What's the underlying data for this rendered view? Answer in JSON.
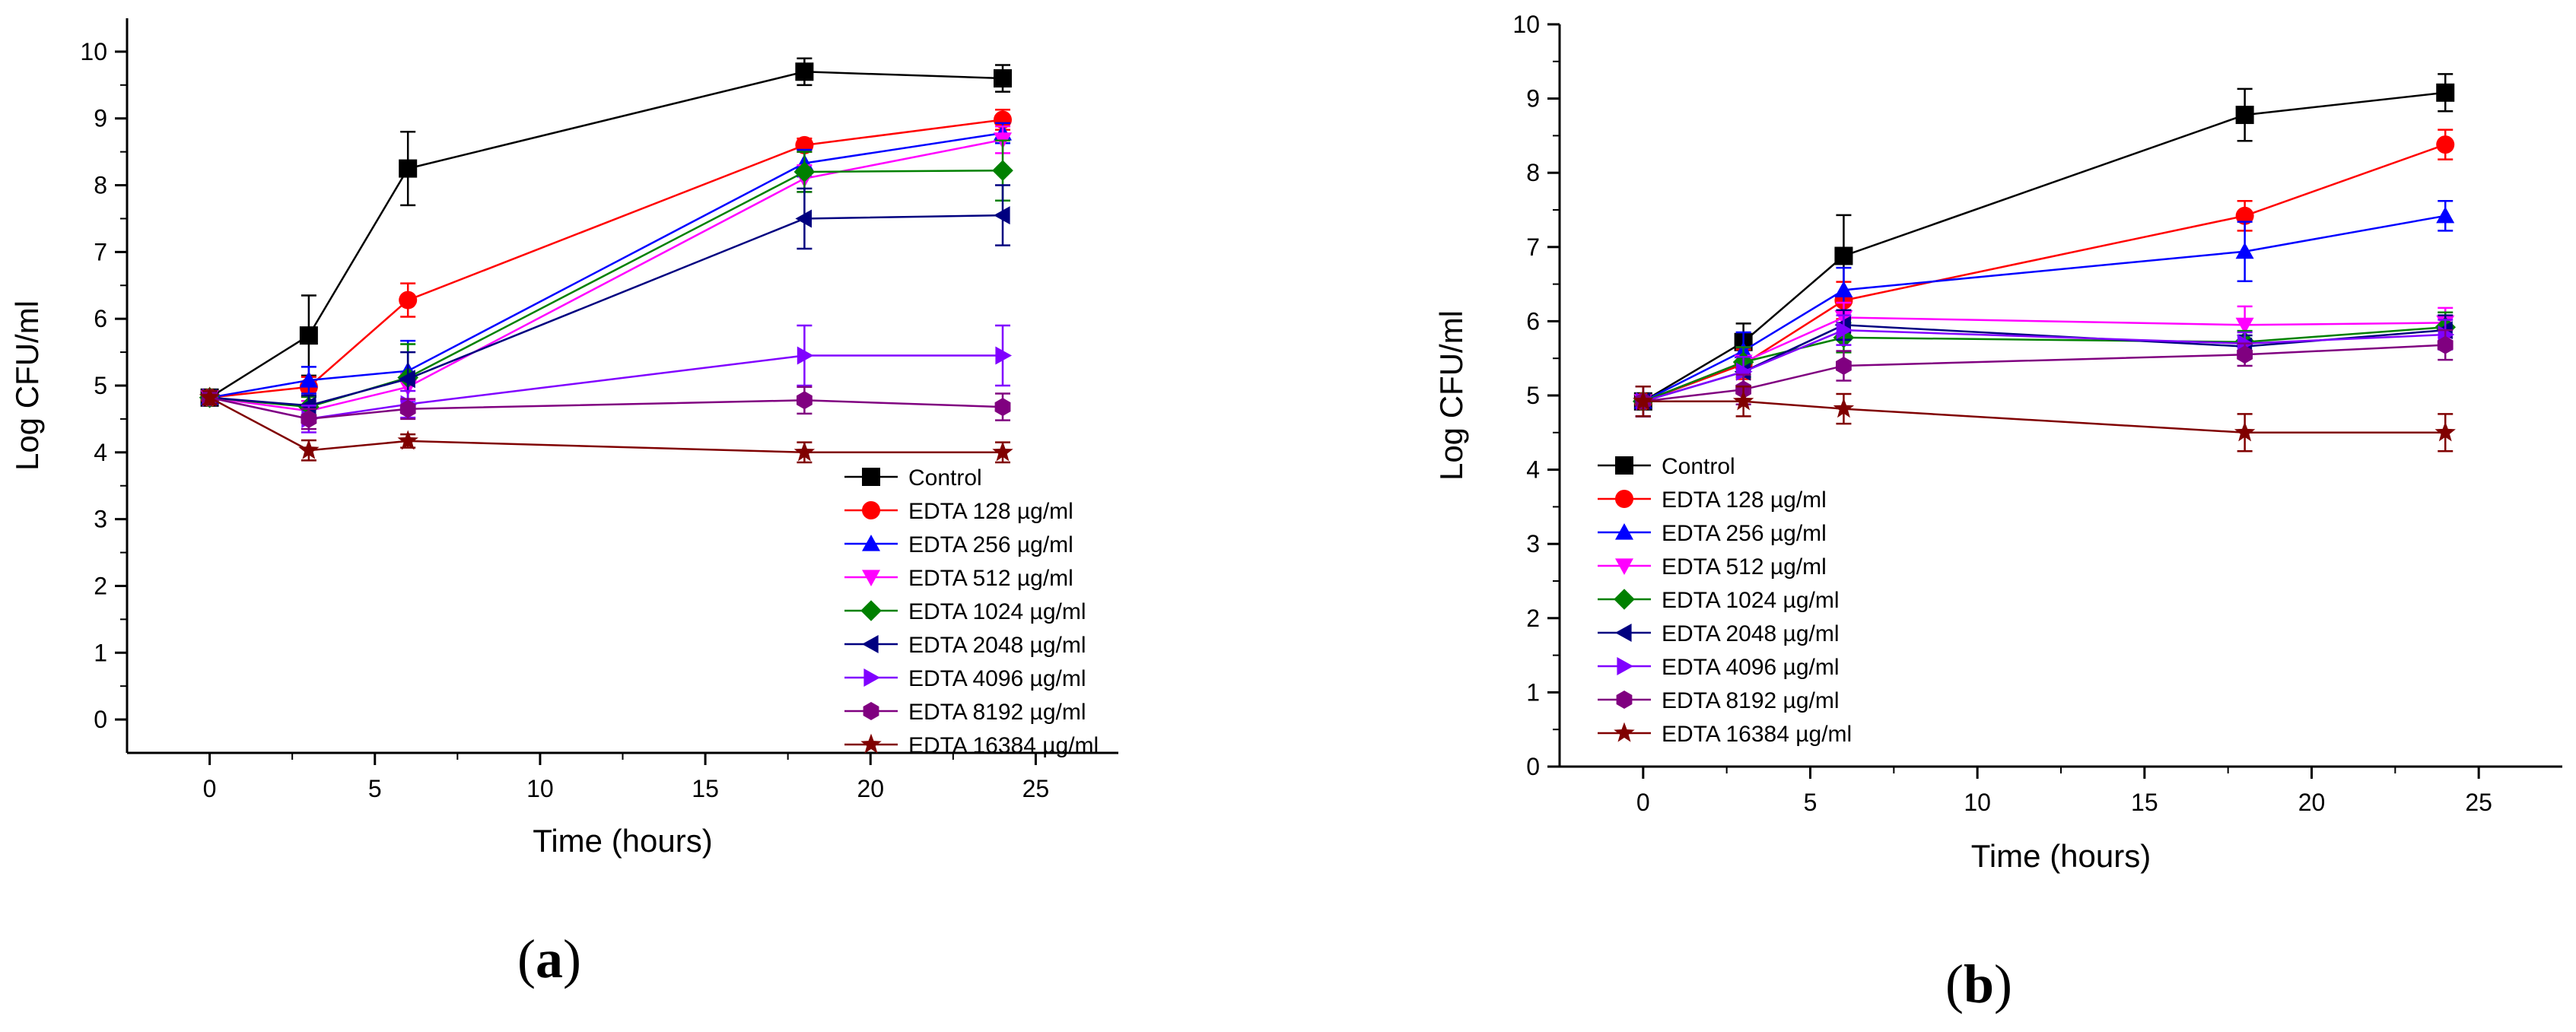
{
  "chart_data": [
    {
      "type": "line",
      "panel_label": "(a)",
      "panel_letter": "a",
      "xlabel": "Time (hours)",
      "ylabel": "Log CFU/ml",
      "xlim": [
        -2.5,
        27.5
      ],
      "ylim": [
        -0.5,
        10.5
      ],
      "xticks": [
        0,
        5,
        10,
        15,
        20,
        25
      ],
      "xtick_labels": [
        "0",
        "5",
        "10",
        "15",
        "20",
        "25"
      ],
      "yticks": [
        0,
        1,
        2,
        3,
        4,
        5,
        6,
        7,
        8,
        9,
        10
      ],
      "ytick_labels": [
        "0",
        "1",
        "2",
        "3",
        "4",
        "5",
        "6",
        "7",
        "8",
        "9",
        "10"
      ],
      "x": [
        0,
        3,
        6,
        18,
        24
      ],
      "series": [
        {
          "name": "Control",
          "color": "#000000",
          "marker": "square",
          "values": [
            4.82,
            5.75,
            8.25,
            9.7,
            9.6
          ],
          "errors": [
            0.1,
            0.6,
            0.55,
            0.2,
            0.2
          ]
        },
        {
          "name": "EDTA 128 µg/ml",
          "color": "#ff0000",
          "marker": "circle",
          "values": [
            4.82,
            4.98,
            6.28,
            8.6,
            8.98
          ],
          "errors": [
            0.1,
            0.15,
            0.25,
            0.1,
            0.15
          ]
        },
        {
          "name": "EDTA 256 µg/ml",
          "color": "#0000ff",
          "marker": "triangle-up",
          "values": [
            4.82,
            5.08,
            5.22,
            8.33,
            8.78
          ],
          "errors": [
            0.1,
            0.2,
            0.45,
            0.2,
            0.15
          ]
        },
        {
          "name": "EDTA 512 µg/ml",
          "color": "#ff00ff",
          "marker": "triangle-down",
          "values": [
            4.82,
            4.62,
            4.98,
            8.1,
            8.68
          ],
          "errors": [
            0.1,
            0.15,
            0.2,
            0.2,
            0.2
          ]
        },
        {
          "name": "EDTA 1024 µg/ml",
          "color": "#008000",
          "marker": "diamond",
          "values": [
            4.82,
            4.68,
            5.12,
            8.2,
            8.22
          ],
          "errors": [
            0.1,
            0.15,
            0.5,
            0.3,
            0.45
          ]
        },
        {
          "name": "EDTA 2048 µg/ml",
          "color": "#000080",
          "marker": "triangle-left",
          "values": [
            4.82,
            4.7,
            5.1,
            7.5,
            7.55
          ],
          "errors": [
            0.1,
            0.15,
            0.4,
            0.45,
            0.45
          ]
        },
        {
          "name": "EDTA 4096 µg/ml",
          "color": "#8000ff",
          "marker": "triangle-right",
          "values": [
            4.82,
            4.5,
            4.72,
            5.45,
            5.45
          ],
          "errors": [
            0.1,
            0.2,
            0.2,
            0.45,
            0.45
          ]
        },
        {
          "name": "EDTA 8192 µg/ml",
          "color": "#800080",
          "marker": "hexagon",
          "values": [
            4.82,
            4.5,
            4.65,
            4.78,
            4.68
          ],
          "errors": [
            0.1,
            0.15,
            0.15,
            0.2,
            0.2
          ]
        },
        {
          "name": "EDTA 16384 µg/ml",
          "color": "#800000",
          "marker": "star",
          "values": [
            4.82,
            4.03,
            4.17,
            4.0,
            4.0
          ],
          "errors": [
            0.1,
            0.15,
            0.1,
            0.15,
            0.15
          ]
        }
      ]
    },
    {
      "type": "line",
      "panel_label": "(b)",
      "panel_letter": "b",
      "xlabel": "Time (hours)",
      "ylabel": "Log CFU/ml",
      "xlim": [
        -2.5,
        27.5
      ],
      "ylim": [
        0,
        10
      ],
      "xticks": [
        0,
        5,
        10,
        15,
        20,
        25
      ],
      "xtick_labels": [
        "0",
        "5",
        "10",
        "15",
        "20",
        "25"
      ],
      "yticks": [
        0,
        1,
        2,
        3,
        4,
        5,
        6,
        7,
        8,
        9,
        10
      ],
      "ytick_labels": [
        "0",
        "1",
        "2",
        "3",
        "4",
        "5",
        "6",
        "7",
        "8",
        "9",
        "10"
      ],
      "x": [
        0,
        3,
        6,
        18,
        24
      ],
      "series": [
        {
          "name": "Control",
          "color": "#000000",
          "marker": "square",
          "values": [
            4.92,
            5.72,
            6.88,
            8.78,
            9.08
          ],
          "errors": [
            0.2,
            0.25,
            0.55,
            0.35,
            0.25
          ]
        },
        {
          "name": "EDTA 128 µg/ml",
          "color": "#ff0000",
          "marker": "circle",
          "values": [
            4.92,
            5.42,
            6.28,
            7.42,
            8.38
          ],
          "errors": [
            0.2,
            0.2,
            0.25,
            0.2,
            0.2
          ]
        },
        {
          "name": "EDTA 256 µg/ml",
          "color": "#0000ff",
          "marker": "triangle-up",
          "values": [
            4.92,
            5.6,
            6.42,
            6.94,
            7.42
          ],
          "errors": [
            0.2,
            0.25,
            0.3,
            0.4,
            0.2
          ]
        },
        {
          "name": "EDTA 512 µg/ml",
          "color": "#ff00ff",
          "marker": "triangle-down",
          "values": [
            4.92,
            5.45,
            6.05,
            5.95,
            5.98
          ],
          "errors": [
            0.2,
            0.2,
            0.2,
            0.25,
            0.2
          ]
        },
        {
          "name": "EDTA 1024 µg/ml",
          "color": "#008000",
          "marker": "diamond",
          "values": [
            4.92,
            5.45,
            5.78,
            5.72,
            5.92
          ],
          "errors": [
            0.2,
            0.2,
            0.2,
            0.15,
            0.2
          ]
        },
        {
          "name": "EDTA 2048 µg/ml",
          "color": "#000080",
          "marker": "triangle-left",
          "values": [
            4.92,
            5.32,
            5.95,
            5.66,
            5.88
          ],
          "errors": [
            0.2,
            0.2,
            0.2,
            0.15,
            0.2
          ]
        },
        {
          "name": "EDTA 4096 µg/ml",
          "color": "#8000ff",
          "marker": "triangle-right",
          "values": [
            4.92,
            5.32,
            5.88,
            5.7,
            5.82
          ],
          "errors": [
            0.2,
            0.2,
            0.2,
            0.15,
            0.2
          ]
        },
        {
          "name": "EDTA 8192 µg/ml",
          "color": "#800080",
          "marker": "hexagon",
          "values": [
            4.92,
            5.08,
            5.4,
            5.55,
            5.68
          ],
          "errors": [
            0.2,
            0.2,
            0.2,
            0.15,
            0.2
          ]
        },
        {
          "name": "EDTA 16384 µg/ml",
          "color": "#800000",
          "marker": "star",
          "values": [
            4.92,
            4.92,
            4.82,
            4.5,
            4.5
          ],
          "errors": [
            0.2,
            0.2,
            0.2,
            0.25,
            0.25
          ]
        }
      ]
    }
  ]
}
